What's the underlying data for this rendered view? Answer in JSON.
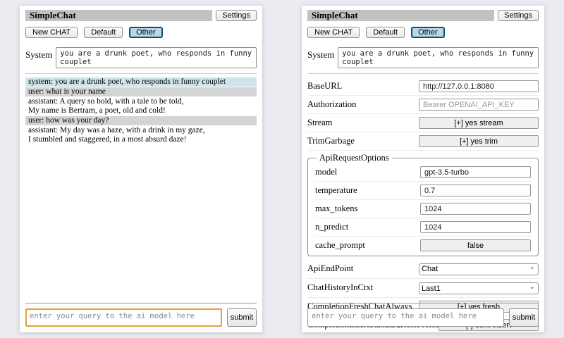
{
  "shared": {
    "title": "SimpleChat",
    "settings_button": "Settings",
    "toolbar": {
      "new_chat": "New CHAT",
      "default_session": "Default",
      "other_session": "Other",
      "active": "Other"
    },
    "system_label": "System",
    "system_value": "you are a drunk poet, who responds in funny couplet",
    "query_placeholder": "enter your query to the ai model here",
    "submit_label": "submit"
  },
  "chat": {
    "messages": [
      {
        "role": "system",
        "text": "system: you are a drunk poet, who responds in funny couplet"
      },
      {
        "role": "user",
        "text": "user: what is your name"
      },
      {
        "role": "assistant",
        "text": "assistant: A query so bold, with a tale to be told,\nMy name is Bertram, a poet, old and cold!"
      },
      {
        "role": "user",
        "text": "user: how was your day?"
      },
      {
        "role": "assistant",
        "text": "assistant: My day was a haze, with a drink in my gaze,\nI stumbled and staggered, in a most absurd daze!"
      }
    ]
  },
  "settings": {
    "rows": [
      {
        "kind": "text",
        "name": "baseurl",
        "label": "BaseURL",
        "value": "http://127.0.0.1:8080"
      },
      {
        "kind": "text",
        "name": "authorization",
        "label": "Authorization",
        "value": "",
        "placeholder": "Bearer OPENAI_API_KEY"
      },
      {
        "kind": "toggle",
        "name": "stream",
        "label": "Stream",
        "value": "[+] yes stream"
      },
      {
        "kind": "toggle",
        "name": "trimgarbage",
        "label": "TrimGarbage",
        "value": "[+] yes trim"
      },
      {
        "kind": "group",
        "name": "apirequestoptions",
        "legend": "ApiRequestOptions",
        "rows": [
          {
            "kind": "text",
            "name": "model",
            "label": "model",
            "value": "gpt-3.5-turbo"
          },
          {
            "kind": "text",
            "name": "temperature",
            "label": "temperature",
            "value": "0.7"
          },
          {
            "kind": "text",
            "name": "max-tokens",
            "label": "max_tokens",
            "value": "1024"
          },
          {
            "kind": "text",
            "name": "n-predict",
            "label": "n_predict",
            "value": "1024"
          },
          {
            "kind": "toggle",
            "name": "cache-prompt",
            "label": "cache_prompt",
            "value": "false"
          }
        ]
      },
      {
        "kind": "select",
        "name": "apiendpoint",
        "label": "ApiEndPoint",
        "value": "Chat"
      },
      {
        "kind": "select",
        "name": "chathistoryinctxt",
        "label": "ChatHistoryInCtxt",
        "value": "Last1"
      },
      {
        "kind": "toggle",
        "name": "completionfreshchatalways",
        "label": "CompletionFreshChatAlways",
        "value": "[+] yes fresh"
      },
      {
        "kind": "toggle",
        "name": "completioninsertstandardroleprefix",
        "label": "CompletionInsertStandardRolePrefix",
        "value": "[-] dont insert"
      }
    ]
  },
  "icons": {
    "chevron_down": "⌄"
  },
  "colors": {
    "page_bg": "#eaecf1",
    "title_bar_bg": "#c2c2c2",
    "system_msg_bg": "#cfe3ed",
    "user_msg_bg": "#d4d4d4",
    "active_tab_bg": "#b6d8e8",
    "active_tab_border": "#1c4a67",
    "focus_border": "#e1a23b"
  }
}
